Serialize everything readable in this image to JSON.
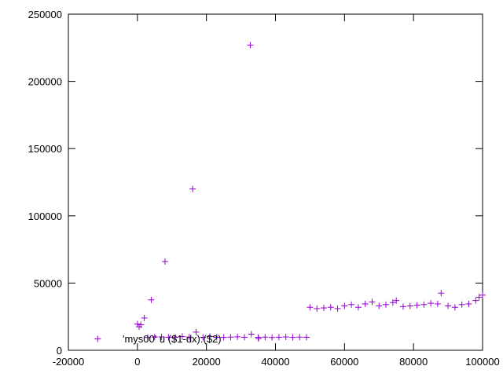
{
  "chart_data": {
    "type": "scatter",
    "marker": "plus",
    "color": "#9400d3",
    "xlim": [
      -20000,
      100000
    ],
    "ylim": [
      0,
      250000
    ],
    "x_ticks": [
      "-20000",
      "0",
      "20000",
      "40000",
      "60000",
      "80000",
      "100000"
    ],
    "y_ticks": [
      "0",
      "50000",
      "100000",
      "150000",
      "200000",
      "250000"
    ],
    "grid": false,
    "legend": {
      "placement": "bottom-left",
      "entries": [
        "'mys00' u ($1-dx):($2)"
      ]
    },
    "series": [
      {
        "name": "'mys00' u ($1-dx):($2)",
        "x": [
          -11500,
          0,
          500,
          1000,
          2000,
          4000,
          8000,
          16000,
          32700,
          3000,
          5000,
          7000,
          9000,
          11000,
          13000,
          15000,
          17000,
          19000,
          21000,
          23000,
          25000,
          27000,
          29000,
          31000,
          33000,
          35000,
          37000,
          39000,
          41000,
          43000,
          45000,
          47000,
          49000,
          50000,
          52000,
          54000,
          56000,
          58000,
          60000,
          62000,
          64000,
          66000,
          68000,
          70000,
          72000,
          74000,
          75000,
          77000,
          79000,
          81000,
          83000,
          85000,
          87000,
          88000,
          90000,
          92000,
          94000,
          96000,
          98000,
          99000,
          100000
        ],
        "y": [
          8500,
          19500,
          17500,
          19000,
          24000,
          37500,
          66000,
          120000,
          227000,
          9500,
          9800,
          10000,
          9700,
          9600,
          10200,
          9800,
          13500,
          9600,
          10300,
          9700,
          9600,
          9800,
          10000,
          9700,
          12000,
          9600,
          9800,
          9500,
          9700,
          9900,
          9600,
          9800,
          9700,
          32000,
          31000,
          31500,
          32000,
          31000,
          33000,
          34000,
          32000,
          34500,
          36000,
          33000,
          34000,
          35500,
          37000,
          32500,
          33000,
          33500,
          34000,
          35000,
          34500,
          42500,
          33000,
          32000,
          34000,
          34500,
          37000,
          39500,
          41000
        ]
      }
    ]
  }
}
